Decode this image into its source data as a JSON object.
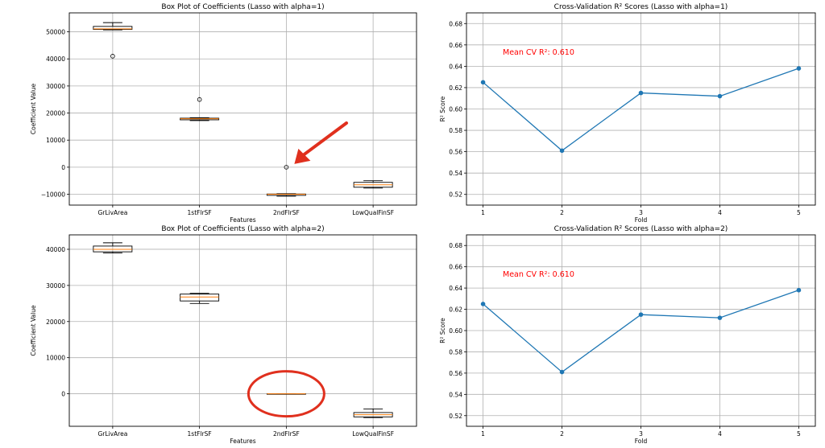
{
  "chart_data": [
    {
      "type": "box",
      "title": "Box Plot of Coefficients (Lasso with alpha=1)",
      "xlabel": "Features",
      "ylabel": "Coefficient Value",
      "categories": [
        "GrLivArea",
        "1stFlrSF",
        "2ndFlrSF",
        "LowQualFinSF"
      ],
      "boxes": [
        {
          "whislo": 50700,
          "q1": 50900,
          "med": 51100,
          "q3": 52000,
          "whishi": 53400,
          "fliers": [
            41000
          ]
        },
        {
          "whislo": 17200,
          "q1": 17500,
          "med": 17900,
          "q3": 18100,
          "whishi": 18300,
          "fliers": [
            25000
          ]
        },
        {
          "whislo": -10700,
          "q1": -10400,
          "med": -10000,
          "q3": -9900,
          "whishi": -9800,
          "fliers": [
            0
          ]
        },
        {
          "whislo": -7700,
          "q1": -7400,
          "med": -6500,
          "q3": -5600,
          "whishi": -5000,
          "fliers": []
        }
      ],
      "ylim": [
        -14000,
        57000
      ],
      "yticks": [
        -10000,
        0,
        10000,
        20000,
        30000,
        40000,
        50000
      ],
      "grid": true,
      "annotation": {
        "shape": "arrow",
        "color": "#e0301e",
        "target": "2ndFlrSF outlier"
      }
    },
    {
      "type": "line",
      "title": "Cross-Validation R² Scores (Lasso with alpha=1)",
      "xlabel": "Fold",
      "ylabel": "R² Score",
      "x": [
        1,
        2,
        3,
        4,
        5
      ],
      "series": [
        {
          "values": [
            0.625,
            0.561,
            0.615,
            0.612,
            0.638
          ]
        }
      ],
      "ylim": [
        0.51,
        0.69
      ],
      "xticks": [
        1,
        2,
        3,
        4,
        5
      ],
      "yticks": [
        0.52,
        0.54,
        0.56,
        0.58,
        0.6,
        0.62,
        0.64,
        0.66,
        0.68
      ],
      "grid": true,
      "text_annotation": "Mean CV R²: 0.610",
      "color": "#1f77b4",
      "annotation_color": "#ff0000"
    },
    {
      "type": "box",
      "title": "Box Plot of Coefficients (Lasso with alpha=2)",
      "xlabel": "Features",
      "ylabel": "Coefficient Value",
      "categories": [
        "GrLivArea",
        "1stFlrSF",
        "2ndFlrSF",
        "LowQualFinSF"
      ],
      "boxes": [
        {
          "whislo": 39000,
          "q1": 39300,
          "med": 40000,
          "q3": 40900,
          "whishi": 41800,
          "fliers": []
        },
        {
          "whislo": 25000,
          "q1": 25700,
          "med": 26800,
          "q3": 27600,
          "whishi": 27800,
          "fliers": []
        },
        {
          "whislo": 0,
          "q1": 0,
          "med": 0,
          "q3": 0,
          "whishi": 0,
          "fliers": []
        },
        {
          "whislo": -6600,
          "q1": -6400,
          "med": -5800,
          "q3": -5200,
          "whishi": -4200,
          "fliers": []
        }
      ],
      "ylim": [
        -9000,
        44000
      ],
      "yticks": [
        0,
        10000,
        20000,
        30000,
        40000
      ],
      "grid": true,
      "annotation": {
        "shape": "ellipse",
        "color": "#e0301e",
        "target": "2ndFlrSF"
      }
    },
    {
      "type": "line",
      "title": "Cross-Validation R² Scores (Lasso with alpha=2)",
      "xlabel": "Fold",
      "ylabel": "R² Score",
      "x": [
        1,
        2,
        3,
        4,
        5
      ],
      "series": [
        {
          "values": [
            0.625,
            0.561,
            0.615,
            0.612,
            0.638
          ]
        }
      ],
      "ylim": [
        0.51,
        0.69
      ],
      "xticks": [
        1,
        2,
        3,
        4,
        5
      ],
      "yticks": [
        0.52,
        0.54,
        0.56,
        0.58,
        0.6,
        0.62,
        0.64,
        0.66,
        0.68
      ],
      "grid": true,
      "text_annotation": "Mean CV R²: 0.610",
      "color": "#1f77b4",
      "annotation_color": "#ff0000"
    }
  ]
}
